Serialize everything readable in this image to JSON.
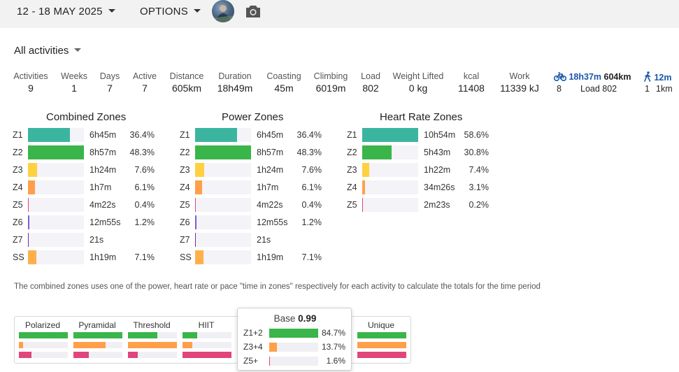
{
  "header": {
    "date_range": "12 - 18 MAY 2025",
    "options_label": "OPTIONS",
    "avatar": "user-avatar",
    "camera_icon": "camera-icon"
  },
  "filter": {
    "label": "All activities"
  },
  "stats": [
    {
      "label": "Activities",
      "value": "9"
    },
    {
      "label": "Weeks",
      "value": "1"
    },
    {
      "label": "Days",
      "value": "7"
    },
    {
      "label": "Active",
      "value": "7"
    },
    {
      "label": "Distance",
      "value": "605km"
    },
    {
      "label": "Duration",
      "value": "18h49m"
    },
    {
      "label": "Coasting",
      "value": "45m"
    },
    {
      "label": "Climbing",
      "value": "6019m"
    },
    {
      "label": "Load",
      "value": "802"
    },
    {
      "label": "Weight Lifted",
      "value": "0 kg"
    },
    {
      "label": "kcal",
      "value": "11408"
    },
    {
      "label": "Work",
      "value": "11339 kJ"
    }
  ],
  "sports": {
    "ride": {
      "icon": "bike-icon",
      "time": "18h37m",
      "dist": "604km",
      "count": "8",
      "load": "Load 802"
    },
    "walk": {
      "icon": "walk-icon",
      "time": "12m",
      "count": "1",
      "dist": "1km"
    }
  },
  "colors": {
    "z1": "#3cb5a0",
    "z2": "#3ab54a",
    "z3": "#ffd040",
    "z4": "#ff9f4a",
    "z5": "#e0457b",
    "z6": "#7f5cd6",
    "z7": "#7a2a9c",
    "ss": "#ffb04a",
    "link": "#1a56a8"
  },
  "combined_zones": {
    "title": "Combined Zones",
    "rows": [
      {
        "zone": "Z1",
        "time": "6h45m",
        "pct": "36.4%",
        "frac": 0.754
      },
      {
        "zone": "Z2",
        "time": "8h57m",
        "pct": "48.3%",
        "frac": 1.0
      },
      {
        "zone": "Z3",
        "time": "1h24m",
        "pct": "7.6%",
        "frac": 0.157
      },
      {
        "zone": "Z4",
        "time": "1h7m",
        "pct": "6.1%",
        "frac": 0.126
      },
      {
        "zone": "Z5",
        "time": "4m22s",
        "pct": "0.4%",
        "frac": 0.008
      },
      {
        "zone": "Z6",
        "time": "12m55s",
        "pct": "1.2%",
        "frac": 0.024
      },
      {
        "zone": "Z7",
        "time": "21s",
        "pct": "",
        "frac": 0.001
      },
      {
        "zone": "SS",
        "time": "1h19m",
        "pct": "7.1%",
        "frac": 0.147
      }
    ]
  },
  "power_zones": {
    "title": "Power Zones",
    "rows": [
      {
        "zone": "Z1",
        "time": "6h45m",
        "pct": "36.4%",
        "frac": 0.754
      },
      {
        "zone": "Z2",
        "time": "8h57m",
        "pct": "48.3%",
        "frac": 1.0
      },
      {
        "zone": "Z3",
        "time": "1h24m",
        "pct": "7.6%",
        "frac": 0.157
      },
      {
        "zone": "Z4",
        "time": "1h7m",
        "pct": "6.1%",
        "frac": 0.126
      },
      {
        "zone": "Z5",
        "time": "4m22s",
        "pct": "0.4%",
        "frac": 0.008
      },
      {
        "zone": "Z6",
        "time": "12m55s",
        "pct": "1.2%",
        "frac": 0.024
      },
      {
        "zone": "Z7",
        "time": "21s",
        "pct": "",
        "frac": 0.001
      },
      {
        "zone": "SS",
        "time": "1h19m",
        "pct": "7.1%",
        "frac": 0.147
      }
    ]
  },
  "hr_zones": {
    "title": "Heart Rate Zones",
    "rows": [
      {
        "zone": "Z1",
        "time": "10h54m",
        "pct": "58.6%",
        "frac": 1.0
      },
      {
        "zone": "Z2",
        "time": "5h43m",
        "pct": "30.8%",
        "frac": 0.526
      },
      {
        "zone": "Z3",
        "time": "1h22m",
        "pct": "7.4%",
        "frac": 0.126
      },
      {
        "zone": "Z4",
        "time": "34m26s",
        "pct": "3.1%",
        "frac": 0.053
      },
      {
        "zone": "Z5",
        "time": "2m23s",
        "pct": "0.2%",
        "frac": 0.004
      }
    ]
  },
  "note": "The combined zones uses one of the power, heart rate or pace \"time in zones\" respectively for each activity to calculate the totals for the time period",
  "distribution": {
    "models": [
      {
        "label": "Polarized",
        "fracs": [
          1.0,
          0.08,
          0.25
        ]
      },
      {
        "label": "Pyramidal",
        "fracs": [
          1.0,
          0.65,
          0.32
        ]
      },
      {
        "label": "Threshold",
        "fracs": [
          0.6,
          1.0,
          0.2
        ]
      },
      {
        "label": "HIIT",
        "fracs": [
          0.3,
          0.2,
          1.0
        ]
      },
      {
        "label": "Unique",
        "fracs": [
          1.0,
          1.0,
          1.0
        ]
      }
    ]
  },
  "tooltip": {
    "title": "Base",
    "value": "0.99",
    "rows": [
      {
        "label": "Z1+2",
        "pct": "84.7%",
        "frac": 1.0
      },
      {
        "label": "Z3+4",
        "pct": "13.7%",
        "frac": 0.162
      },
      {
        "label": "Z5+",
        "pct": "1.6%",
        "frac": 0.019
      }
    ]
  }
}
